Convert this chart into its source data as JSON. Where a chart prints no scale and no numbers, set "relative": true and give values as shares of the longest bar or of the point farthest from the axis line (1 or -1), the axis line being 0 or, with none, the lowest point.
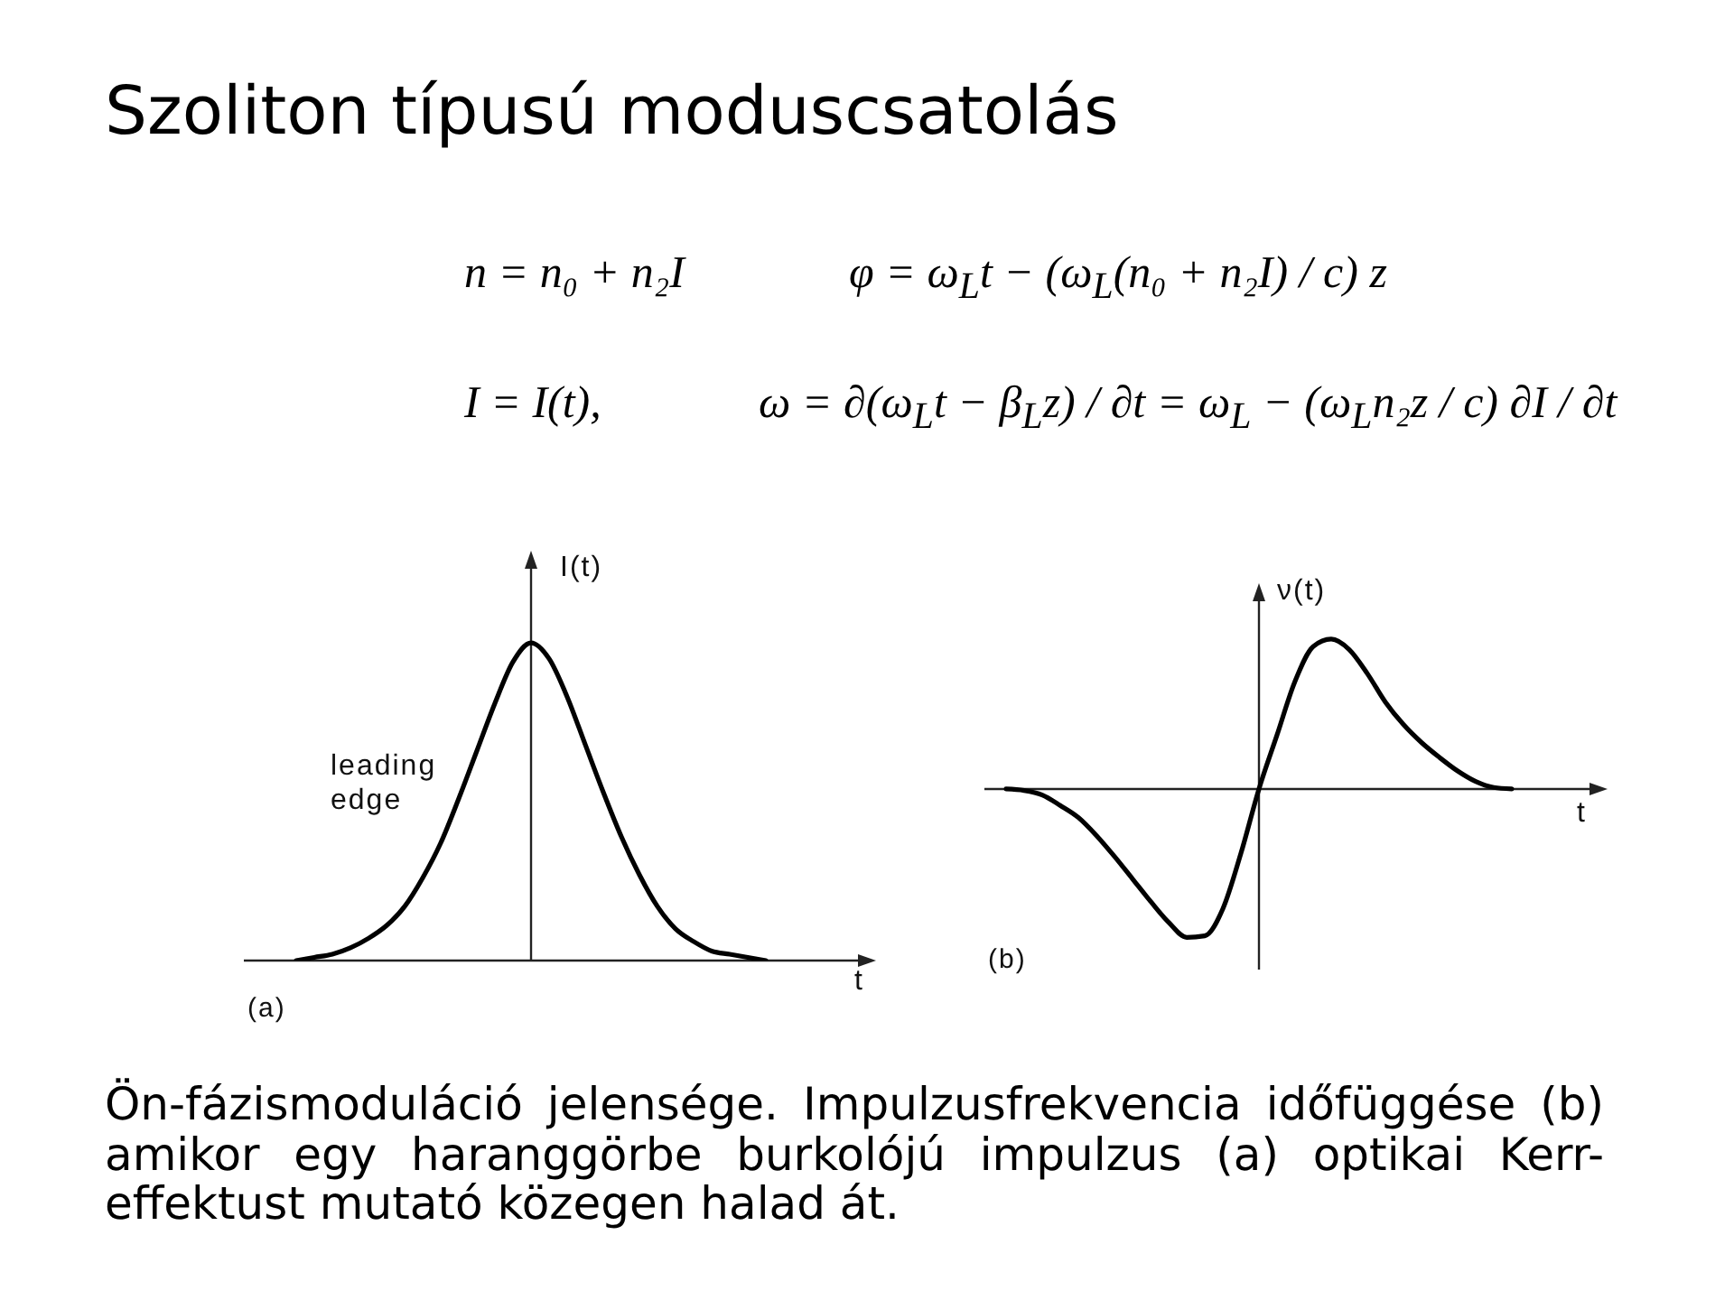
{
  "chart_data": [
    {
      "type": "other",
      "title": "Szoliton típusú moduscsatolás",
      "annotations": [
        "n = n₀ + n₂I",
        "φ = ω$_{L}$t − (ω$_{L}$(n₀ + n₂I) / c) z",
        "I = I(t),",
        "ω = ∂(ω$_{L}$t − β$_{L}$z) / ∂t = ω$_{L}$ − (ω$_{L}$n₂z / c) ∂I / ∂t"
      ]
    },
    {
      "type": "line",
      "title": "(a)",
      "xlabel": "t",
      "ylabel": "I(t)",
      "relative": true,
      "marker": "none",
      "annotations": [
        "leading edge"
      ],
      "categories": [
        null,
        null,
        null,
        null,
        null,
        null,
        null,
        null,
        null,
        null,
        null,
        null,
        null,
        null,
        null,
        null,
        null,
        null,
        null,
        null,
        null,
        null,
        null,
        null,
        null,
        null,
        null
      ],
      "series": [
        {
          "color": "#000000",
          "values": [
            0,
            0.01,
            0.02,
            0.04,
            0.07,
            0.11,
            0.17,
            0.26,
            0.37,
            0.51,
            0.66,
            0.81,
            0.94,
            1,
            0.95,
            0.83,
            0.68,
            0.53,
            0.39,
            0.27,
            0.17,
            0.1,
            0.06,
            0.03,
            0.02,
            0.01,
            0
          ]
        }
      ]
    },
    {
      "type": "line",
      "title": "(b)",
      "xlabel": "t",
      "ylabel": "ν(t)",
      "relative": true,
      "marker": "none",
      "categories": [
        null,
        null,
        null,
        null,
        null,
        null,
        null,
        null,
        null,
        null,
        null,
        null,
        null,
        null,
        null,
        null,
        null,
        null,
        null,
        null,
        null,
        null,
        null,
        null,
        null,
        null,
        null,
        null,
        null
      ],
      "series": [
        {
          "color": "#000000",
          "values": [
            0,
            -0.01,
            -0.04,
            -0.11,
            -0.19,
            -0.31,
            -0.45,
            -0.6,
            -0.75,
            -0.89,
            -0.99,
            -0.98,
            -0.8,
            -0.43,
            0,
            0.36,
            0.72,
            0.95,
            1,
            0.93,
            0.77,
            0.58,
            0.43,
            0.31,
            0.21,
            0.12,
            0.05,
            0.01,
            0
          ]
        }
      ]
    },
    {
      "type": "other",
      "annotations": [
        "Ön-fázismoduláció jelensége. Impulzusfrekvencia időfüggése (b) amikor egy haranggörbe burkolójú impulzus (a) optikai Kerr-effektust mutató közegen halad át."
      ]
    }
  ]
}
